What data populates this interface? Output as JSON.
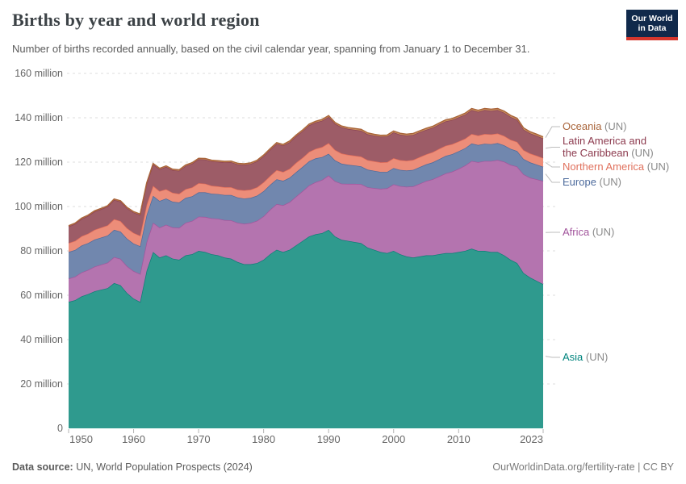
{
  "header": {
    "title": "Births by year and world region",
    "subtitle": "Number of births recorded annually, based on the civil calendar year, spanning from January 1 to December 31."
  },
  "logo": {
    "line1": "Our World",
    "line2": "in Data",
    "bg_color": "#10294b",
    "accent_color": "#d5362d"
  },
  "chart_data": {
    "type": "area",
    "stacked": true,
    "title": "Births by year and world region",
    "values_unit": "million births per year",
    "x": {
      "start": 1950,
      "end": 2023,
      "step": 1
    },
    "ylim": [
      0,
      160
    ],
    "grid": "dashed horizontal",
    "legend_position": "right",
    "yticks": [
      {
        "value": 0,
        "label": "0"
      },
      {
        "value": 20,
        "label": "20 million"
      },
      {
        "value": 40,
        "label": "40 million"
      },
      {
        "value": 60,
        "label": "60 million"
      },
      {
        "value": 80,
        "label": "80 million"
      },
      {
        "value": 100,
        "label": "100 million"
      },
      {
        "value": 120,
        "label": "120 million"
      },
      {
        "value": 140,
        "label": "140 million"
      },
      {
        "value": 160,
        "label": "160 million"
      }
    ],
    "xticks": [
      {
        "value": 1950,
        "label": "1950",
        "clamp": "left"
      },
      {
        "value": 1960,
        "label": "1960"
      },
      {
        "value": 1970,
        "label": "1970"
      },
      {
        "value": 1980,
        "label": "1980"
      },
      {
        "value": 1990,
        "label": "1990"
      },
      {
        "value": 2000,
        "label": "2000"
      },
      {
        "value": 2010,
        "label": "2010"
      },
      {
        "value": 2023,
        "label": "2023",
        "clamp": "right"
      }
    ],
    "series": [
      {
        "name": "Asia",
        "legend_lines": [
          "Asia"
        ],
        "legend_suffix": " (UN)",
        "text_color": "#00847e",
        "fill": "#2f9a8e",
        "stroke": "#0e7e76",
        "values": [
          57.0,
          57.8,
          59.5,
          60.5,
          61.8,
          62.5,
          63.2,
          65.5,
          64.5,
          61.0,
          58.5,
          57.0,
          71.0,
          79.5,
          77.0,
          78.0,
          76.5,
          76.0,
          78.0,
          78.5,
          80.0,
          79.5,
          78.5,
          78.0,
          77.0,
          76.5,
          75.0,
          74.0,
          74.0,
          74.5,
          76.0,
          78.5,
          80.5,
          79.5,
          80.5,
          82.5,
          84.5,
          86.5,
          87.5,
          88.0,
          89.5,
          86.5,
          85.0,
          84.5,
          84.0,
          83.5,
          81.5,
          80.5,
          79.5,
          79.0,
          80.0,
          78.5,
          77.5,
          77.0,
          77.5,
          78.0,
          78.0,
          78.5,
          79.0,
          79.0,
          79.5,
          80.0,
          81.0,
          80.0,
          80.0,
          79.5,
          79.5,
          78.0,
          76.0,
          74.5,
          70.0,
          68.0,
          66.5,
          65.0
        ]
      },
      {
        "name": "Africa",
        "legend_lines": [
          "Africa"
        ],
        "legend_suffix": " (UN)",
        "text_color": "#a2559c",
        "fill": "#b474af",
        "stroke": "#a2559c",
        "values": [
          10.5,
          10.6,
          10.8,
          10.9,
          11.1,
          11.3,
          11.5,
          11.7,
          11.9,
          12.1,
          12.4,
          12.6,
          12.9,
          13.2,
          13.5,
          13.8,
          14.1,
          14.4,
          14.7,
          15.0,
          15.4,
          15.8,
          16.2,
          16.5,
          16.9,
          17.3,
          17.7,
          18.2,
          18.6,
          19.1,
          19.6,
          20.1,
          20.6,
          21.1,
          21.5,
          22.0,
          22.5,
          23.0,
          23.5,
          24.0,
          24.5,
          24.9,
          25.3,
          25.7,
          26.2,
          26.6,
          27.2,
          27.8,
          28.5,
          29.2,
          30.0,
          30.7,
          31.4,
          32.1,
          32.8,
          33.5,
          34.3,
          35.1,
          35.9,
          36.7,
          37.5,
          38.5,
          39.5,
          40.0,
          40.5,
          41.0,
          41.5,
          42.2,
          42.8,
          43.5,
          44.5,
          45.0,
          45.8,
          46.5
        ]
      },
      {
        "name": "Europe",
        "legend_lines": [
          "Europe"
        ],
        "legend_suffix": " (UN)",
        "text_color": "#4c6a9c",
        "fill": "#7187ae",
        "stroke": "#4c6a9c",
        "values": [
          12.0,
          12.0,
          12.1,
          12.1,
          12.2,
          12.2,
          12.2,
          12.3,
          12.3,
          12.4,
          12.4,
          12.5,
          12.2,
          12.1,
          12.0,
          11.8,
          11.6,
          11.4,
          11.2,
          11.1,
          11.0,
          11.1,
          11.1,
          11.1,
          11.3,
          11.4,
          11.4,
          11.4,
          11.3,
          11.3,
          11.3,
          11.2,
          11.2,
          11.0,
          11.0,
          11.0,
          10.9,
          10.9,
          10.7,
          10.3,
          9.8,
          9.4,
          9.0,
          8.6,
          8.3,
          8.0,
          7.9,
          7.8,
          7.6,
          7.4,
          7.3,
          7.3,
          7.3,
          7.4,
          7.5,
          7.5,
          7.6,
          7.7,
          7.9,
          7.9,
          7.9,
          7.8,
          7.9,
          7.7,
          7.8,
          7.6,
          7.6,
          7.4,
          7.2,
          7.0,
          6.9,
          6.9,
          6.6,
          6.4
        ]
      },
      {
        "name": "Northern America",
        "legend_lines": [
          "Northern America"
        ],
        "legend_suffix": " (UN)",
        "text_color": "#e0705c",
        "fill": "#ec8d79",
        "stroke": "#e56e5a",
        "values": [
          4.0,
          4.1,
          4.2,
          4.3,
          4.4,
          4.5,
          4.6,
          4.8,
          4.7,
          4.7,
          4.8,
          4.7,
          4.6,
          4.5,
          4.4,
          4.2,
          4.0,
          3.9,
          3.9,
          4.0,
          4.1,
          3.9,
          3.6,
          3.5,
          3.5,
          3.5,
          3.5,
          3.7,
          3.7,
          3.8,
          4.0,
          4.0,
          4.1,
          4.0,
          4.0,
          4.2,
          4.1,
          4.2,
          4.3,
          4.5,
          4.8,
          4.7,
          4.6,
          4.5,
          4.4,
          4.4,
          4.3,
          4.3,
          4.3,
          4.4,
          4.5,
          4.4,
          4.4,
          4.5,
          4.5,
          4.5,
          4.6,
          4.7,
          4.6,
          4.5,
          4.4,
          4.3,
          4.3,
          4.3,
          4.4,
          4.4,
          4.3,
          4.2,
          4.1,
          4.1,
          4.0,
          4.0,
          4.0,
          3.9
        ]
      },
      {
        "name": "Latin America and the Caribbean",
        "legend_lines": [
          "Latin America and",
          "the Caribbean"
        ],
        "legend_suffix": " (UN)",
        "text_color": "#8c3a4e",
        "fill": "#9d5c67",
        "stroke": "#8c4152",
        "values": [
          7.5,
          7.7,
          7.8,
          8.0,
          8.2,
          8.3,
          8.5,
          8.7,
          8.8,
          9.0,
          9.2,
          9.4,
          9.5,
          9.7,
          9.9,
          10.1,
          10.2,
          10.4,
          10.5,
          10.7,
          10.8,
          10.9,
          11.0,
          11.1,
          11.2,
          11.3,
          11.4,
          11.5,
          11.6,
          11.7,
          11.8,
          11.8,
          11.9,
          11.9,
          12.0,
          12.0,
          12.0,
          12.0,
          11.9,
          11.9,
          11.8,
          11.8,
          11.8,
          11.7,
          11.7,
          11.7,
          11.7,
          11.6,
          11.6,
          11.6,
          11.6,
          11.5,
          11.4,
          11.3,
          11.2,
          11.1,
          11.0,
          11.0,
          11.0,
          10.9,
          10.9,
          10.8,
          10.8,
          10.7,
          10.8,
          10.7,
          10.6,
          10.5,
          10.3,
          10.0,
          9.3,
          9.1,
          9.0,
          8.9
        ]
      },
      {
        "name": "Oceania",
        "legend_lines": [
          "Oceania"
        ],
        "legend_suffix": " (UN)",
        "text_color": "#a9643a",
        "fill": "#c9935f",
        "stroke": "#a9643a",
        "values": [
          0.35,
          0.35,
          0.36,
          0.36,
          0.37,
          0.37,
          0.38,
          0.38,
          0.39,
          0.39,
          0.4,
          0.4,
          0.41,
          0.41,
          0.42,
          0.42,
          0.43,
          0.43,
          0.44,
          0.44,
          0.45,
          0.45,
          0.46,
          0.46,
          0.47,
          0.47,
          0.48,
          0.48,
          0.49,
          0.49,
          0.5,
          0.5,
          0.51,
          0.51,
          0.52,
          0.52,
          0.53,
          0.54,
          0.55,
          0.56,
          0.57,
          0.57,
          0.58,
          0.58,
          0.59,
          0.59,
          0.6,
          0.6,
          0.61,
          0.61,
          0.62,
          0.62,
          0.63,
          0.63,
          0.64,
          0.64,
          0.65,
          0.65,
          0.66,
          0.66,
          0.66,
          0.67,
          0.67,
          0.67,
          0.68,
          0.68,
          0.68,
          0.69,
          0.69,
          0.69,
          0.7,
          0.7,
          0.71,
          0.72
        ]
      }
    ]
  },
  "footer": {
    "source_label": "Data source:",
    "source_value": " UN, World Population Prospects (2024)",
    "right_url": "OurWorldinData.org/fertility-rate",
    "right_separator": " | ",
    "right_license": "CC BY"
  }
}
